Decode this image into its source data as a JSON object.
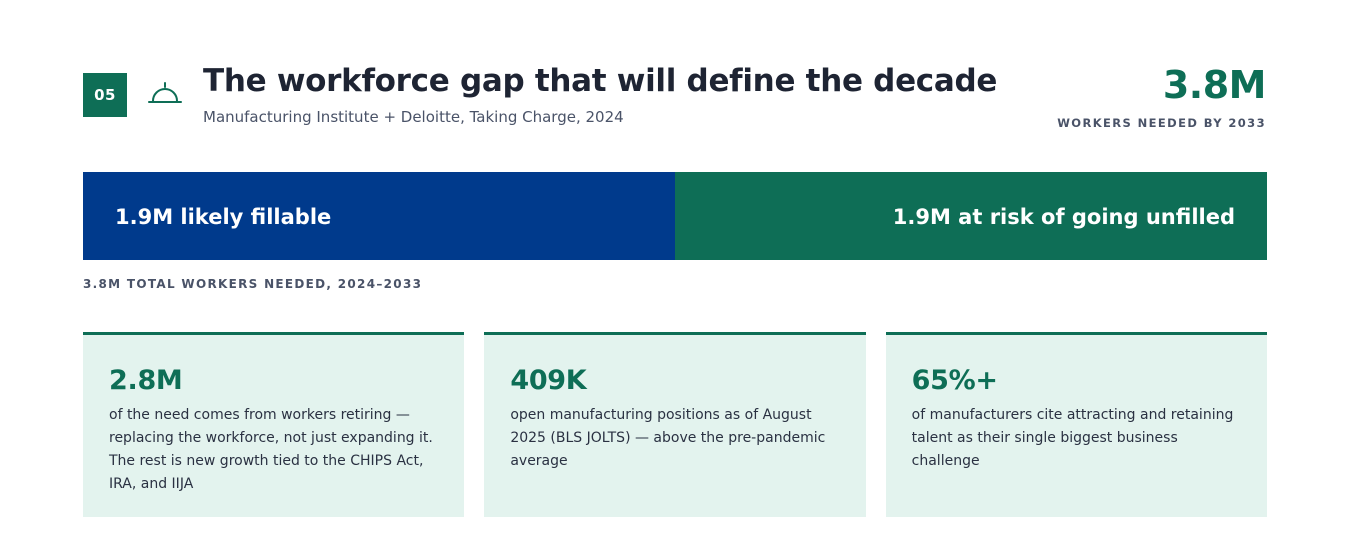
{
  "header": {
    "section_number": "05",
    "title": "The workforce gap that will define the decade",
    "subtitle": "Manufacturing Institute + Deloitte, Taking Charge, 2024",
    "icon": "service-bell-icon"
  },
  "kpi": {
    "value": "3.8M",
    "label": "WORKERS NEEDED BY 2033"
  },
  "chart_data": {
    "type": "bar",
    "orientation": "horizontal-stacked",
    "total": 3.8,
    "unit": "M",
    "segments": [
      {
        "label": "1.9M likely fillable",
        "value": 1.9,
        "color": "#003a8c"
      },
      {
        "label": "1.9M at risk of going unfilled",
        "value": 1.9,
        "color": "#0e6e56"
      }
    ],
    "caption": "3.8M TOTAL WORKERS NEEDED, 2024–2033"
  },
  "cards": [
    {
      "value": "2.8M",
      "text": "of the need comes from workers retiring — replacing the workforce, not just expanding it. The rest is new growth tied to the CHIPS Act, IRA, and IIJA"
    },
    {
      "value": "409K",
      "text": "open manufacturing positions as of August 2025 (BLS JOLTS) — above the pre-pandemic average"
    },
    {
      "value": "65%+",
      "text": "of manufacturers cite attracting and retaining talent as their single biggest business challenge"
    }
  ],
  "colors": {
    "accent": "#0e6e56",
    "blue": "#003a8c",
    "card_bg": "#e3f3ee",
    "text": "#1e2433",
    "muted": "#4a5368"
  }
}
